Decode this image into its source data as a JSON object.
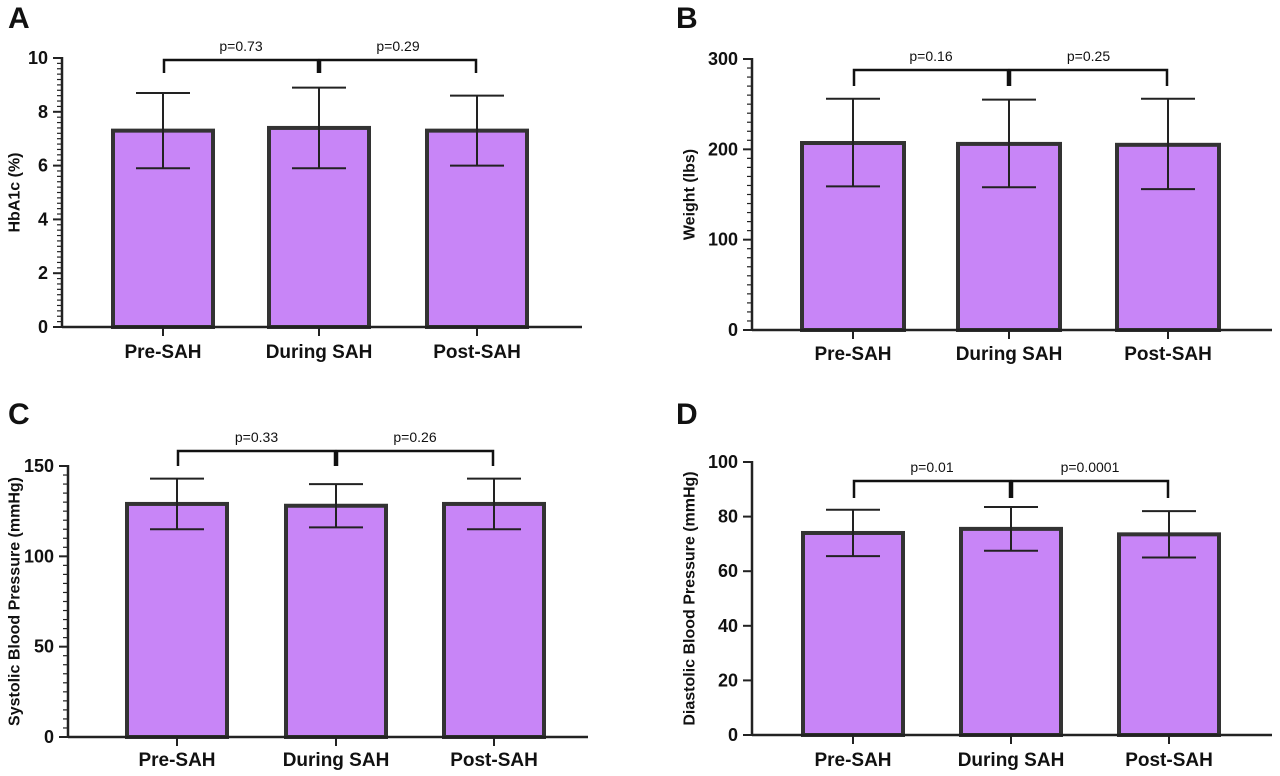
{
  "colors": {
    "bar_fill": "#c885f7",
    "bar_stroke": "#333333",
    "axis": "#222222"
  },
  "chart_data": [
    {
      "type": "bar",
      "panel": "A",
      "categories": [
        "Pre-SAH",
        "During SAH",
        "Post-SAH"
      ],
      "values": [
        7.3,
        7.4,
        7.3
      ],
      "error_low": [
        5.9,
        5.9,
        6.0
      ],
      "error_high": [
        8.7,
        8.9,
        8.6
      ],
      "ylabel": "HbA1c  (%)",
      "ylim": [
        0,
        10
      ],
      "yticks": [
        0,
        2,
        4,
        6,
        8,
        10
      ],
      "minor_ticks": true,
      "comparisons": [
        {
          "from": 0,
          "to": 1,
          "label": "p=0.73"
        },
        {
          "from": 1,
          "to": 2,
          "label": "p=0.29"
        }
      ]
    },
    {
      "type": "bar",
      "panel": "B",
      "categories": [
        "Pre-SAH",
        "During SAH",
        "Post-SAH"
      ],
      "values": [
        207,
        206,
        205
      ],
      "error_low": [
        159,
        158,
        156
      ],
      "error_high": [
        256,
        255,
        256
      ],
      "ylabel": "Weight (lbs)",
      "ylim": [
        0,
        300
      ],
      "yticks": [
        0,
        100,
        200,
        300
      ],
      "minor_ticks": true,
      "comparisons": [
        {
          "from": 0,
          "to": 1,
          "label": "p=0.16"
        },
        {
          "from": 1,
          "to": 2,
          "label": "p=0.25"
        }
      ]
    },
    {
      "type": "bar",
      "panel": "C",
      "categories": [
        "Pre-SAH",
        "During SAH",
        "Post-SAH"
      ],
      "values": [
        129,
        128,
        129
      ],
      "error_low": [
        115,
        116,
        115
      ],
      "error_high": [
        143,
        140,
        143
      ],
      "ylabel": "Systolic Blood Pressure (mmHg)",
      "ylim": [
        0,
        150
      ],
      "yticks": [
        0,
        50,
        100,
        150
      ],
      "minor_ticks": true,
      "comparisons": [
        {
          "from": 0,
          "to": 1,
          "label": "p=0.33"
        },
        {
          "from": 1,
          "to": 2,
          "label": "p=0.26"
        }
      ]
    },
    {
      "type": "bar",
      "panel": "D",
      "categories": [
        "Pre-SAH",
        "During SAH",
        "Post-SAH"
      ],
      "values": [
        74,
        75.5,
        73.5
      ],
      "error_low": [
        65.5,
        67.5,
        65
      ],
      "error_high": [
        82.5,
        83.5,
        82
      ],
      "ylabel": "Diastolic Blood Pressure (mmHg)",
      "ylim": [
        0,
        100
      ],
      "yticks": [
        0,
        20,
        40,
        60,
        80,
        100
      ],
      "minor_ticks": false,
      "comparisons": [
        {
          "from": 0,
          "to": 1,
          "label": "p=0.01"
        },
        {
          "from": 1,
          "to": 2,
          "label": "p=0.0001"
        }
      ]
    }
  ]
}
